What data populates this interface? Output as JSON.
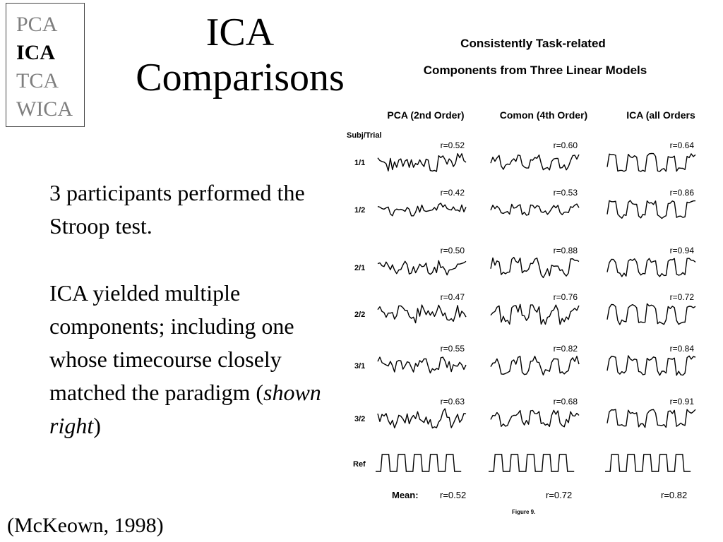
{
  "nav": {
    "items": [
      {
        "label": "PCA",
        "active": false
      },
      {
        "label": "ICA",
        "active": true
      },
      {
        "label": "TCA",
        "active": false
      },
      {
        "label": "WICA",
        "active": false
      }
    ]
  },
  "title": {
    "line1": "ICA",
    "line2": "Comparisons"
  },
  "body": {
    "paragraph1": "3 participants performed the Stroop test.",
    "paragraph2_main": "ICA yielded multiple components;  including one whose timecourse closely matched the paradigm (",
    "paragraph2_italic": "shown right",
    "paragraph2_end": ")"
  },
  "citation": "(McKeown, 1998)",
  "figure": {
    "title_line1": "Consistently Task-related",
    "title_line2": "Components from Three Linear Models",
    "row_header": "Subj/Trial",
    "column_headers": [
      "PCA (2nd Order)",
      "Comon (4th Order)",
      "ICA (all Orders"
    ],
    "rows": [
      {
        "label": "1/1",
        "r": [
          "r=0.52",
          "r=0.60",
          "r=0.64"
        ]
      },
      {
        "label": "1/2",
        "r": [
          "r=0.42",
          "r=0.53",
          "r=0.86"
        ]
      },
      {
        "label": "2/1",
        "r": [
          "r=0.50",
          "r=0.88",
          "r=0.94"
        ]
      },
      {
        "label": "2/2",
        "r": [
          "r=0.47",
          "r=0.76",
          "r=0.72"
        ]
      },
      {
        "label": "3/1",
        "r": [
          "r=0.55",
          "r=0.82",
          "r=0.84"
        ]
      },
      {
        "label": "3/2",
        "r": [
          "r=0.63",
          "r=0.68",
          "r=0.91"
        ]
      }
    ],
    "ref_label": "Ref",
    "mean_label": "Mean:",
    "means": [
      "r=0.52",
      "r=0.72",
      "r=0.82"
    ],
    "caption": "Figure 9."
  }
}
